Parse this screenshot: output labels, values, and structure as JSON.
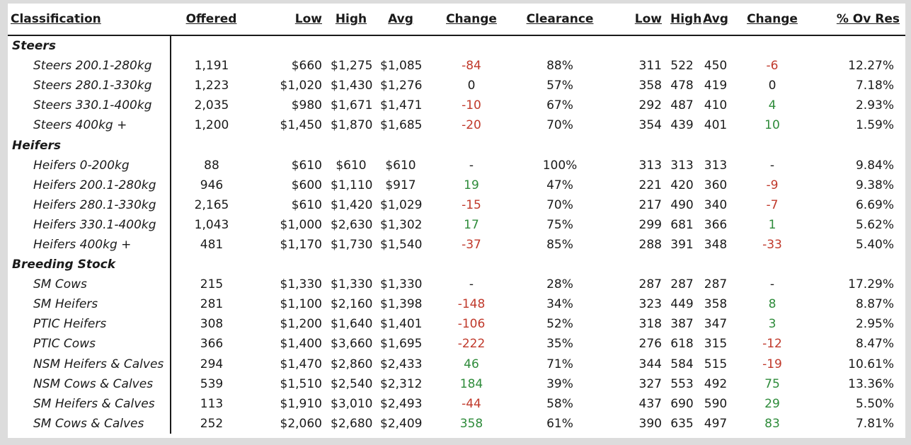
{
  "headers": {
    "classification": "Classification",
    "offered": "Offered",
    "low": "Low",
    "high": "High",
    "avg": "Avg",
    "change": "Change",
    "clearance": "Clearance",
    "low2": "Low",
    "high2": "High",
    "avg2": "Avg",
    "change2": "Change",
    "ovres": "% Ov Res"
  },
  "colors": {
    "negative": "#c0392b",
    "positive": "#2e8b3a",
    "neutral": "#1a1a1a"
  },
  "groups": [
    {
      "name": "Steers",
      "rows": [
        {
          "cls": "Steers 200.1-280kg",
          "offered": "1,191",
          "low": "$660",
          "high": "$1,275",
          "avg": "$1,085",
          "change": "-84",
          "clearance": "88%",
          "low2": "311",
          "high2": "522",
          "avg2": "450",
          "change2": "-6",
          "ovres": "12.27%"
        },
        {
          "cls": "Steers 280.1-330kg",
          "offered": "1,223",
          "low": "$1,020",
          "high": "$1,430",
          "avg": "$1,276",
          "change": "0",
          "clearance": "57%",
          "low2": "358",
          "high2": "478",
          "avg2": "419",
          "change2": "0",
          "ovres": "7.18%"
        },
        {
          "cls": "Steers 330.1-400kg",
          "offered": "2,035",
          "low": "$980",
          "high": "$1,671",
          "avg": "$1,471",
          "change": "-10",
          "clearance": "67%",
          "low2": "292",
          "high2": "487",
          "avg2": "410",
          "change2": "4",
          "ovres": "2.93%"
        },
        {
          "cls": "Steers 400kg +",
          "offered": "1,200",
          "low": "$1,450",
          "high": "$1,870",
          "avg": "$1,685",
          "change": "-20",
          "clearance": "70%",
          "low2": "354",
          "high2": "439",
          "avg2": "401",
          "change2": "10",
          "ovres": "1.59%"
        }
      ]
    },
    {
      "name": "Heifers",
      "rows": [
        {
          "cls": "Heifers 0-200kg",
          "offered": "88",
          "low": "$610",
          "high": "$610",
          "avg": "$610",
          "change": "-",
          "clearance": "100%",
          "low2": "313",
          "high2": "313",
          "avg2": "313",
          "change2": "-",
          "ovres": "9.84%"
        },
        {
          "cls": "Heifers 200.1-280kg",
          "offered": "946",
          "low": "$600",
          "high": "$1,110",
          "avg": "$917",
          "change": "19",
          "clearance": "47%",
          "low2": "221",
          "high2": "420",
          "avg2": "360",
          "change2": "-9",
          "ovres": "9.38%"
        },
        {
          "cls": "Heifers 280.1-330kg",
          "offered": "2,165",
          "low": "$610",
          "high": "$1,420",
          "avg": "$1,029",
          "change": "-15",
          "clearance": "70%",
          "low2": "217",
          "high2": "490",
          "avg2": "340",
          "change2": "-7",
          "ovres": "6.69%"
        },
        {
          "cls": "Heifers 330.1-400kg",
          "offered": "1,043",
          "low": "$1,000",
          "high": "$2,630",
          "avg": "$1,302",
          "change": "17",
          "clearance": "75%",
          "low2": "299",
          "high2": "681",
          "avg2": "366",
          "change2": "1",
          "ovres": "5.62%"
        },
        {
          "cls": "Heifers 400kg +",
          "offered": "481",
          "low": "$1,170",
          "high": "$1,730",
          "avg": "$1,540",
          "change": "-37",
          "clearance": "85%",
          "low2": "288",
          "high2": "391",
          "avg2": "348",
          "change2": "-33",
          "ovres": "5.40%"
        }
      ]
    },
    {
      "name": "Breeding Stock",
      "rows": [
        {
          "cls": "SM Cows",
          "offered": "215",
          "low": "$1,330",
          "high": "$1,330",
          "avg": "$1,330",
          "change": "-",
          "clearance": "28%",
          "low2": "287",
          "high2": "287",
          "avg2": "287",
          "change2": "-",
          "ovres": "17.29%"
        },
        {
          "cls": "SM Heifers",
          "offered": "281",
          "low": "$1,100",
          "high": "$2,160",
          "avg": "$1,398",
          "change": "-148",
          "clearance": "34%",
          "low2": "323",
          "high2": "449",
          "avg2": "358",
          "change2": "8",
          "ovres": "8.87%"
        },
        {
          "cls": "PTIC Heifers",
          "offered": "308",
          "low": "$1,200",
          "high": "$1,640",
          "avg": "$1,401",
          "change": "-106",
          "clearance": "52%",
          "low2": "318",
          "high2": "387",
          "avg2": "347",
          "change2": "3",
          "ovres": "2.95%"
        },
        {
          "cls": "PTIC Cows",
          "offered": "366",
          "low": "$1,400",
          "high": "$3,660",
          "avg": "$1,695",
          "change": "-222",
          "clearance": "35%",
          "low2": "276",
          "high2": "618",
          "avg2": "315",
          "change2": "-12",
          "ovres": "8.47%"
        },
        {
          "cls": "NSM Heifers & Calves",
          "offered": "294",
          "low": "$1,470",
          "high": "$2,860",
          "avg": "$2,433",
          "change": "46",
          "clearance": "71%",
          "low2": "344",
          "high2": "584",
          "avg2": "515",
          "change2": "-19",
          "ovres": "10.61%"
        },
        {
          "cls": "NSM Cows & Calves",
          "offered": "539",
          "low": "$1,510",
          "high": "$2,540",
          "avg": "$2,312",
          "change": "184",
          "clearance": "39%",
          "low2": "327",
          "high2": "553",
          "avg2": "492",
          "change2": "75",
          "ovres": "13.36%"
        },
        {
          "cls": "SM Heifers & Calves",
          "offered": "113",
          "low": "$1,910",
          "high": "$3,010",
          "avg": "$2,493",
          "change": "-44",
          "clearance": "58%",
          "low2": "437",
          "high2": "690",
          "avg2": "590",
          "change2": "29",
          "ovres": "5.50%"
        },
        {
          "cls": "SM Cows & Calves",
          "offered": "252",
          "low": "$2,060",
          "high": "$2,680",
          "avg": "$2,409",
          "change": "358",
          "clearance": "61%",
          "low2": "390",
          "high2": "635",
          "avg2": "497",
          "change2": "83",
          "ovres": "7.81%"
        }
      ]
    }
  ]
}
